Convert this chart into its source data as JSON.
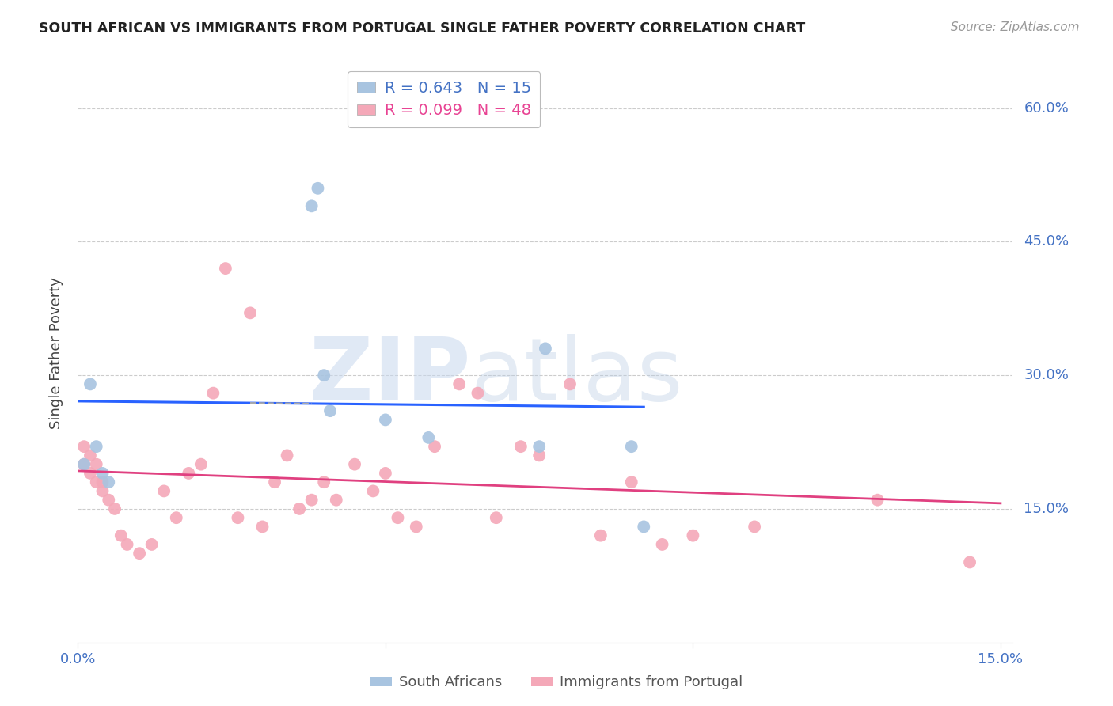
{
  "title": "SOUTH AFRICAN VS IMMIGRANTS FROM PORTUGAL SINGLE FATHER POVERTY CORRELATION CHART",
  "source": "Source: ZipAtlas.com",
  "ylabel": "Single Father Poverty",
  "xlim": [
    0.0,
    0.15
  ],
  "ylim": [
    0.0,
    0.65
  ],
  "ytick_labels": [
    "15.0%",
    "30.0%",
    "45.0%",
    "60.0%"
  ],
  "ytick_values": [
    0.15,
    0.3,
    0.45,
    0.6
  ],
  "sa_R": 0.643,
  "sa_N": 15,
  "pt_R": 0.099,
  "pt_N": 48,
  "sa_color": "#a8c4e0",
  "pt_color": "#f4a8b8",
  "sa_line_color": "#2962ff",
  "pt_line_color": "#e04080",
  "background_color": "#ffffff",
  "sa_x": [
    0.001,
    0.002,
    0.003,
    0.004,
    0.005,
    0.038,
    0.039,
    0.04,
    0.041,
    0.05,
    0.057,
    0.075,
    0.076,
    0.09,
    0.092
  ],
  "sa_y": [
    0.2,
    0.29,
    0.22,
    0.19,
    0.18,
    0.49,
    0.51,
    0.3,
    0.26,
    0.25,
    0.23,
    0.22,
    0.33,
    0.22,
    0.13
  ],
  "pt_x": [
    0.001,
    0.001,
    0.002,
    0.002,
    0.003,
    0.003,
    0.004,
    0.004,
    0.005,
    0.006,
    0.007,
    0.008,
    0.01,
    0.012,
    0.014,
    0.016,
    0.018,
    0.02,
    0.022,
    0.024,
    0.026,
    0.028,
    0.03,
    0.032,
    0.034,
    0.036,
    0.038,
    0.04,
    0.042,
    0.045,
    0.048,
    0.05,
    0.052,
    0.055,
    0.058,
    0.062,
    0.065,
    0.068,
    0.072,
    0.075,
    0.08,
    0.085,
    0.09,
    0.095,
    0.1,
    0.11,
    0.13,
    0.145
  ],
  "pt_y": [
    0.2,
    0.22,
    0.19,
    0.21,
    0.18,
    0.2,
    0.18,
    0.17,
    0.16,
    0.15,
    0.12,
    0.11,
    0.1,
    0.11,
    0.17,
    0.14,
    0.19,
    0.2,
    0.28,
    0.42,
    0.14,
    0.37,
    0.13,
    0.18,
    0.21,
    0.15,
    0.16,
    0.18,
    0.16,
    0.2,
    0.17,
    0.19,
    0.14,
    0.13,
    0.22,
    0.29,
    0.28,
    0.14,
    0.22,
    0.21,
    0.29,
    0.12,
    0.18,
    0.11,
    0.12,
    0.13,
    0.16,
    0.09
  ]
}
